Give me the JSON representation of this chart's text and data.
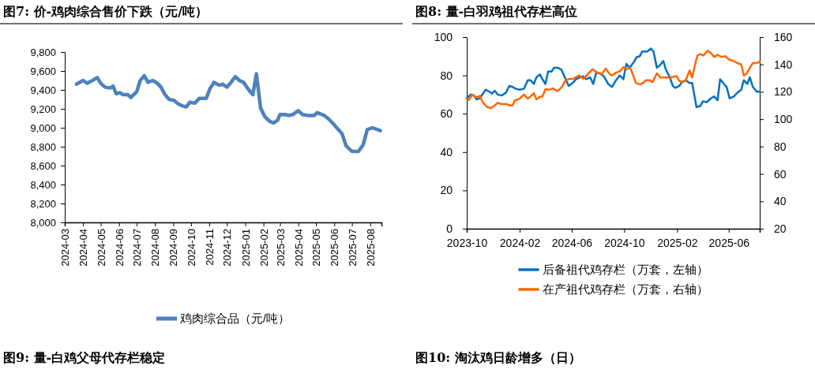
{
  "chart_data": [
    {
      "type": "line",
      "title": "图7:  价-鸡肉综合售价下跌（元/吨）",
      "legend": "bottom",
      "annotations": [
        "图9:  量-白鸡父母代存栏稳定"
      ],
      "xlim": [
        "2024-03-01",
        "2025-08-20"
      ],
      "xticks": [
        "2024-03",
        "2024-04",
        "2024-05",
        "2024-06",
        "2024-07",
        "2024-08",
        "2024-09",
        "2024-10",
        "2024-11",
        "2024-12",
        "2025-01",
        "2025-02",
        "2025-03",
        "2025-04",
        "2025-05",
        "2025-06",
        "2025-07",
        "2025-08"
      ],
      "ylim": [
        8000,
        9800
      ],
      "yticks": [
        {
          "value": 8000,
          "label": "8,000"
        },
        {
          "value": 8200,
          "label": "8,200"
        },
        {
          "value": 8400,
          "label": "8,400"
        },
        {
          "value": 8600,
          "label": "8,600"
        },
        {
          "value": 8800,
          "label": "8,800"
        },
        {
          "value": 9000,
          "label": "9,000"
        },
        {
          "value": 9200,
          "label": "9,200"
        },
        {
          "value": 9400,
          "label": "9,400"
        },
        {
          "value": 9600,
          "label": "9,600"
        },
        {
          "value": 9800,
          "label": "9,800"
        }
      ],
      "series": [
        {
          "name": "鸡肉综合品（元/吨）",
          "color": "#4f81bd",
          "x": [
            "2024-03-21",
            "2024-04-01",
            "2024-04-08",
            "2024-04-17",
            "2024-04-25",
            "2024-05-01",
            "2024-05-08",
            "2024-05-17",
            "2024-05-22",
            "2024-05-27",
            "2024-06-02",
            "2024-06-08",
            "2024-06-16",
            "2024-06-21",
            "2024-07-01",
            "2024-07-07",
            "2024-07-14",
            "2024-07-20",
            "2024-07-28",
            "2024-08-05",
            "2024-08-11",
            "2024-08-18",
            "2024-08-25",
            "2024-09-02",
            "2024-09-10",
            "2024-09-17",
            "2024-09-23",
            "2024-09-29",
            "2024-10-08",
            "2024-10-15",
            "2024-10-27",
            "2024-11-02",
            "2024-11-09",
            "2024-11-18",
            "2024-11-24",
            "2024-12-01",
            "2024-12-08",
            "2024-12-15",
            "2024-12-22",
            "2024-12-29",
            "2025-01-07",
            "2025-01-14",
            "2025-01-20",
            "2025-01-27",
            "2025-02-03",
            "2025-02-11",
            "2025-02-18",
            "2025-02-25",
            "2025-03-01",
            "2025-03-09",
            "2025-03-16",
            "2025-03-23",
            "2025-04-01",
            "2025-04-08",
            "2025-04-17",
            "2025-04-28",
            "2025-05-03",
            "2025-05-15",
            "2025-05-23",
            "2025-06-01",
            "2025-06-08",
            "2025-06-14",
            "2025-06-21",
            "2025-07-01",
            "2025-07-12",
            "2025-07-20",
            "2025-07-27",
            "2025-08-05",
            "2025-08-18"
          ],
          "values": [
            9460,
            9500,
            9470,
            9500,
            9530,
            9470,
            9430,
            9420,
            9440,
            9360,
            9370,
            9350,
            9350,
            9320,
            9380,
            9500,
            9550,
            9480,
            9500,
            9470,
            9430,
            9350,
            9300,
            9290,
            9250,
            9230,
            9220,
            9270,
            9260,
            9310,
            9310,
            9410,
            9480,
            9450,
            9460,
            9430,
            9480,
            9540,
            9500,
            9480,
            9400,
            9350,
            9570,
            9210,
            9120,
            9070,
            9050,
            9080,
            9140,
            9140,
            9130,
            9140,
            9180,
            9140,
            9130,
            9130,
            9160,
            9130,
            9090,
            9030,
            8980,
            8940,
            8810,
            8750,
            8750,
            8820,
            8980,
            9000,
            8970
          ]
        }
      ]
    },
    {
      "type": "line",
      "title": "图8:  量-白羽鸡祖代存栏高位",
      "legend": "bottom",
      "annotations": [
        "图10:  淘汰鸡日龄增多（日）"
      ],
      "xlim": [
        "2023-10-01",
        "2025-08-12"
      ],
      "xticks": [
        "2023-10",
        "2024-02",
        "2024-06",
        "2024-10",
        "2025-02",
        "2025-06"
      ],
      "ylim": [
        0,
        100
      ],
      "yticks": [
        0,
        20,
        40,
        60,
        80,
        100
      ],
      "y2lim": [
        20,
        160
      ],
      "y2ticks": [
        20,
        40,
        60,
        80,
        100,
        120,
        140,
        160
      ],
      "series": [
        {
          "name": "后备祖代鸡存栏（万套，左轴）",
          "color": "#0070c0",
          "axis": "y",
          "x": [
            "2023-10-01",
            "2023-10-10",
            "2023-10-18",
            "2023-10-24",
            "2023-10-31",
            "2023-11-14",
            "2023-11-23",
            "2023-11-29",
            "2023-12-05",
            "2023-12-12",
            "2023-12-21",
            "2023-12-31",
            "2024-01-08",
            "2024-01-16",
            "2024-01-23",
            "2024-02-01",
            "2024-02-11",
            "2024-02-20",
            "2024-02-26",
            "2024-03-05",
            "2024-03-11",
            "2024-03-19",
            "2024-03-25",
            "2024-04-01",
            "2024-04-07",
            "2024-04-15",
            "2024-04-21",
            "2024-04-30",
            "2024-05-08",
            "2024-05-16",
            "2024-05-25",
            "2024-06-03",
            "2024-06-11",
            "2024-06-20",
            "2024-06-28",
            "2024-07-05",
            "2024-07-14",
            "2024-07-21",
            "2024-07-28",
            "2024-08-06",
            "2024-08-15",
            "2024-08-25",
            "2024-09-03",
            "2024-09-12",
            "2024-09-21",
            "2024-09-29",
            "2024-10-06",
            "2024-10-14",
            "2024-10-22",
            "2024-10-30",
            "2024-11-06",
            "2024-11-12",
            "2024-11-24",
            "2024-12-02",
            "2024-12-08",
            "2024-12-16",
            "2024-12-24",
            "2024-12-31",
            "2025-01-06",
            "2025-01-15",
            "2025-01-22",
            "2025-01-28",
            "2025-02-06",
            "2025-02-12",
            "2025-02-21",
            "2025-03-02",
            "2025-03-08",
            "2025-03-18",
            "2025-03-27",
            "2025-04-02",
            "2025-04-11",
            "2025-04-20",
            "2025-04-28",
            "2025-05-06",
            "2025-05-12",
            "2025-05-21",
            "2025-05-27",
            "2025-06-03",
            "2025-06-13",
            "2025-06-21",
            "2025-06-30",
            "2025-07-06",
            "2025-07-14",
            "2025-07-20",
            "2025-07-27",
            "2025-08-05",
            "2025-08-12"
          ],
          "values": [
            68,
            70,
            69.5,
            67.5,
            68,
            72.5,
            71.5,
            70.5,
            72,
            70,
            69.5,
            71,
            74.5,
            74,
            73,
            72.5,
            73,
            77.5,
            77.5,
            75.5,
            79,
            80.5,
            78,
            75.5,
            82,
            82,
            84,
            84,
            83,
            79,
            74.5,
            76,
            78,
            79,
            79.5,
            78,
            79,
            75.5,
            81.5,
            81,
            79.5,
            75.5,
            74,
            77.5,
            80,
            78,
            86,
            84,
            86.5,
            89.5,
            90,
            92.5,
            92.5,
            94,
            92.5,
            84,
            85.5,
            87.5,
            83,
            79,
            74.5,
            73.5,
            74.5,
            76.5,
            77.5,
            76,
            76,
            63.5,
            64,
            66.5,
            66,
            68,
            69,
            67,
            78,
            75.5,
            74,
            68,
            69,
            71,
            72.5,
            77.5,
            75.5,
            79,
            74,
            71.5,
            71.5
          ]
        },
        {
          "name": "在产祖代鸡存栏（万套，右轴）",
          "color": "#ff6600",
          "axis": "y2",
          "x": [
            "2023-10-01",
            "2023-10-06",
            "2023-10-14",
            "2023-10-22",
            "2023-10-31",
            "2023-11-08",
            "2023-11-17",
            "2023-11-26",
            "2023-12-05",
            "2023-12-12",
            "2023-12-21",
            "2024-01-02",
            "2024-01-10",
            "2024-01-16",
            "2024-01-20",
            "2024-02-01",
            "2024-02-11",
            "2024-02-20",
            "2024-02-26",
            "2024-03-05",
            "2024-03-11",
            "2024-03-19",
            "2024-03-25",
            "2024-04-01",
            "2024-04-09",
            "2024-04-18",
            "2024-04-29",
            "2024-05-09",
            "2024-05-18",
            "2024-05-27",
            "2024-06-05",
            "2024-06-18",
            "2024-06-28",
            "2024-07-06",
            "2024-07-19",
            "2024-07-28",
            "2024-08-10",
            "2024-08-19",
            "2024-08-28",
            "2024-09-03",
            "2024-09-12",
            "2024-09-21",
            "2024-09-29",
            "2024-10-06",
            "2024-10-15",
            "2024-10-22",
            "2024-10-28",
            "2024-11-06",
            "2024-11-12",
            "2024-11-21",
            "2024-11-30",
            "2024-12-06",
            "2024-12-16",
            "2024-12-24",
            "2024-12-31",
            "2025-01-15",
            "2025-01-24",
            "2025-01-31",
            "2025-02-06",
            "2025-02-15",
            "2025-02-21",
            "2025-03-02",
            "2025-03-08",
            "2025-03-14",
            "2025-03-20",
            "2025-03-27",
            "2025-04-03",
            "2025-04-13",
            "2025-04-20",
            "2025-04-28",
            "2025-05-06",
            "2025-05-15",
            "2025-05-24",
            "2025-06-02",
            "2025-06-12",
            "2025-06-21",
            "2025-06-30",
            "2025-07-06",
            "2025-07-12",
            "2025-07-21",
            "2025-07-27",
            "2025-08-05",
            "2025-08-12"
          ],
          "values": [
            115,
            114,
            118,
            116,
            117,
            112,
            109,
            108,
            110,
            112,
            111,
            111,
            110,
            110,
            113.5,
            115,
            118,
            115,
            116.5,
            119,
            114.5,
            116.5,
            116.5,
            122,
            121.5,
            122.5,
            120.5,
            123.5,
            128.5,
            129.5,
            129.5,
            132,
            129.5,
            132,
            136.5,
            134.5,
            133,
            137,
            133,
            132,
            134,
            135,
            138,
            136.5,
            137.5,
            132,
            126.5,
            125.5,
            126,
            128.5,
            128.5,
            127,
            133.5,
            130.5,
            130.5,
            130.5,
            131,
            131.5,
            128,
            127,
            128.5,
            135.5,
            130.5,
            139,
            146.5,
            147.5,
            146.5,
            150,
            148.5,
            145.5,
            147,
            145.5,
            146,
            143.5,
            142.5,
            141,
            140,
            132,
            133,
            138,
            141,
            141,
            142
          ]
        }
      ]
    }
  ]
}
